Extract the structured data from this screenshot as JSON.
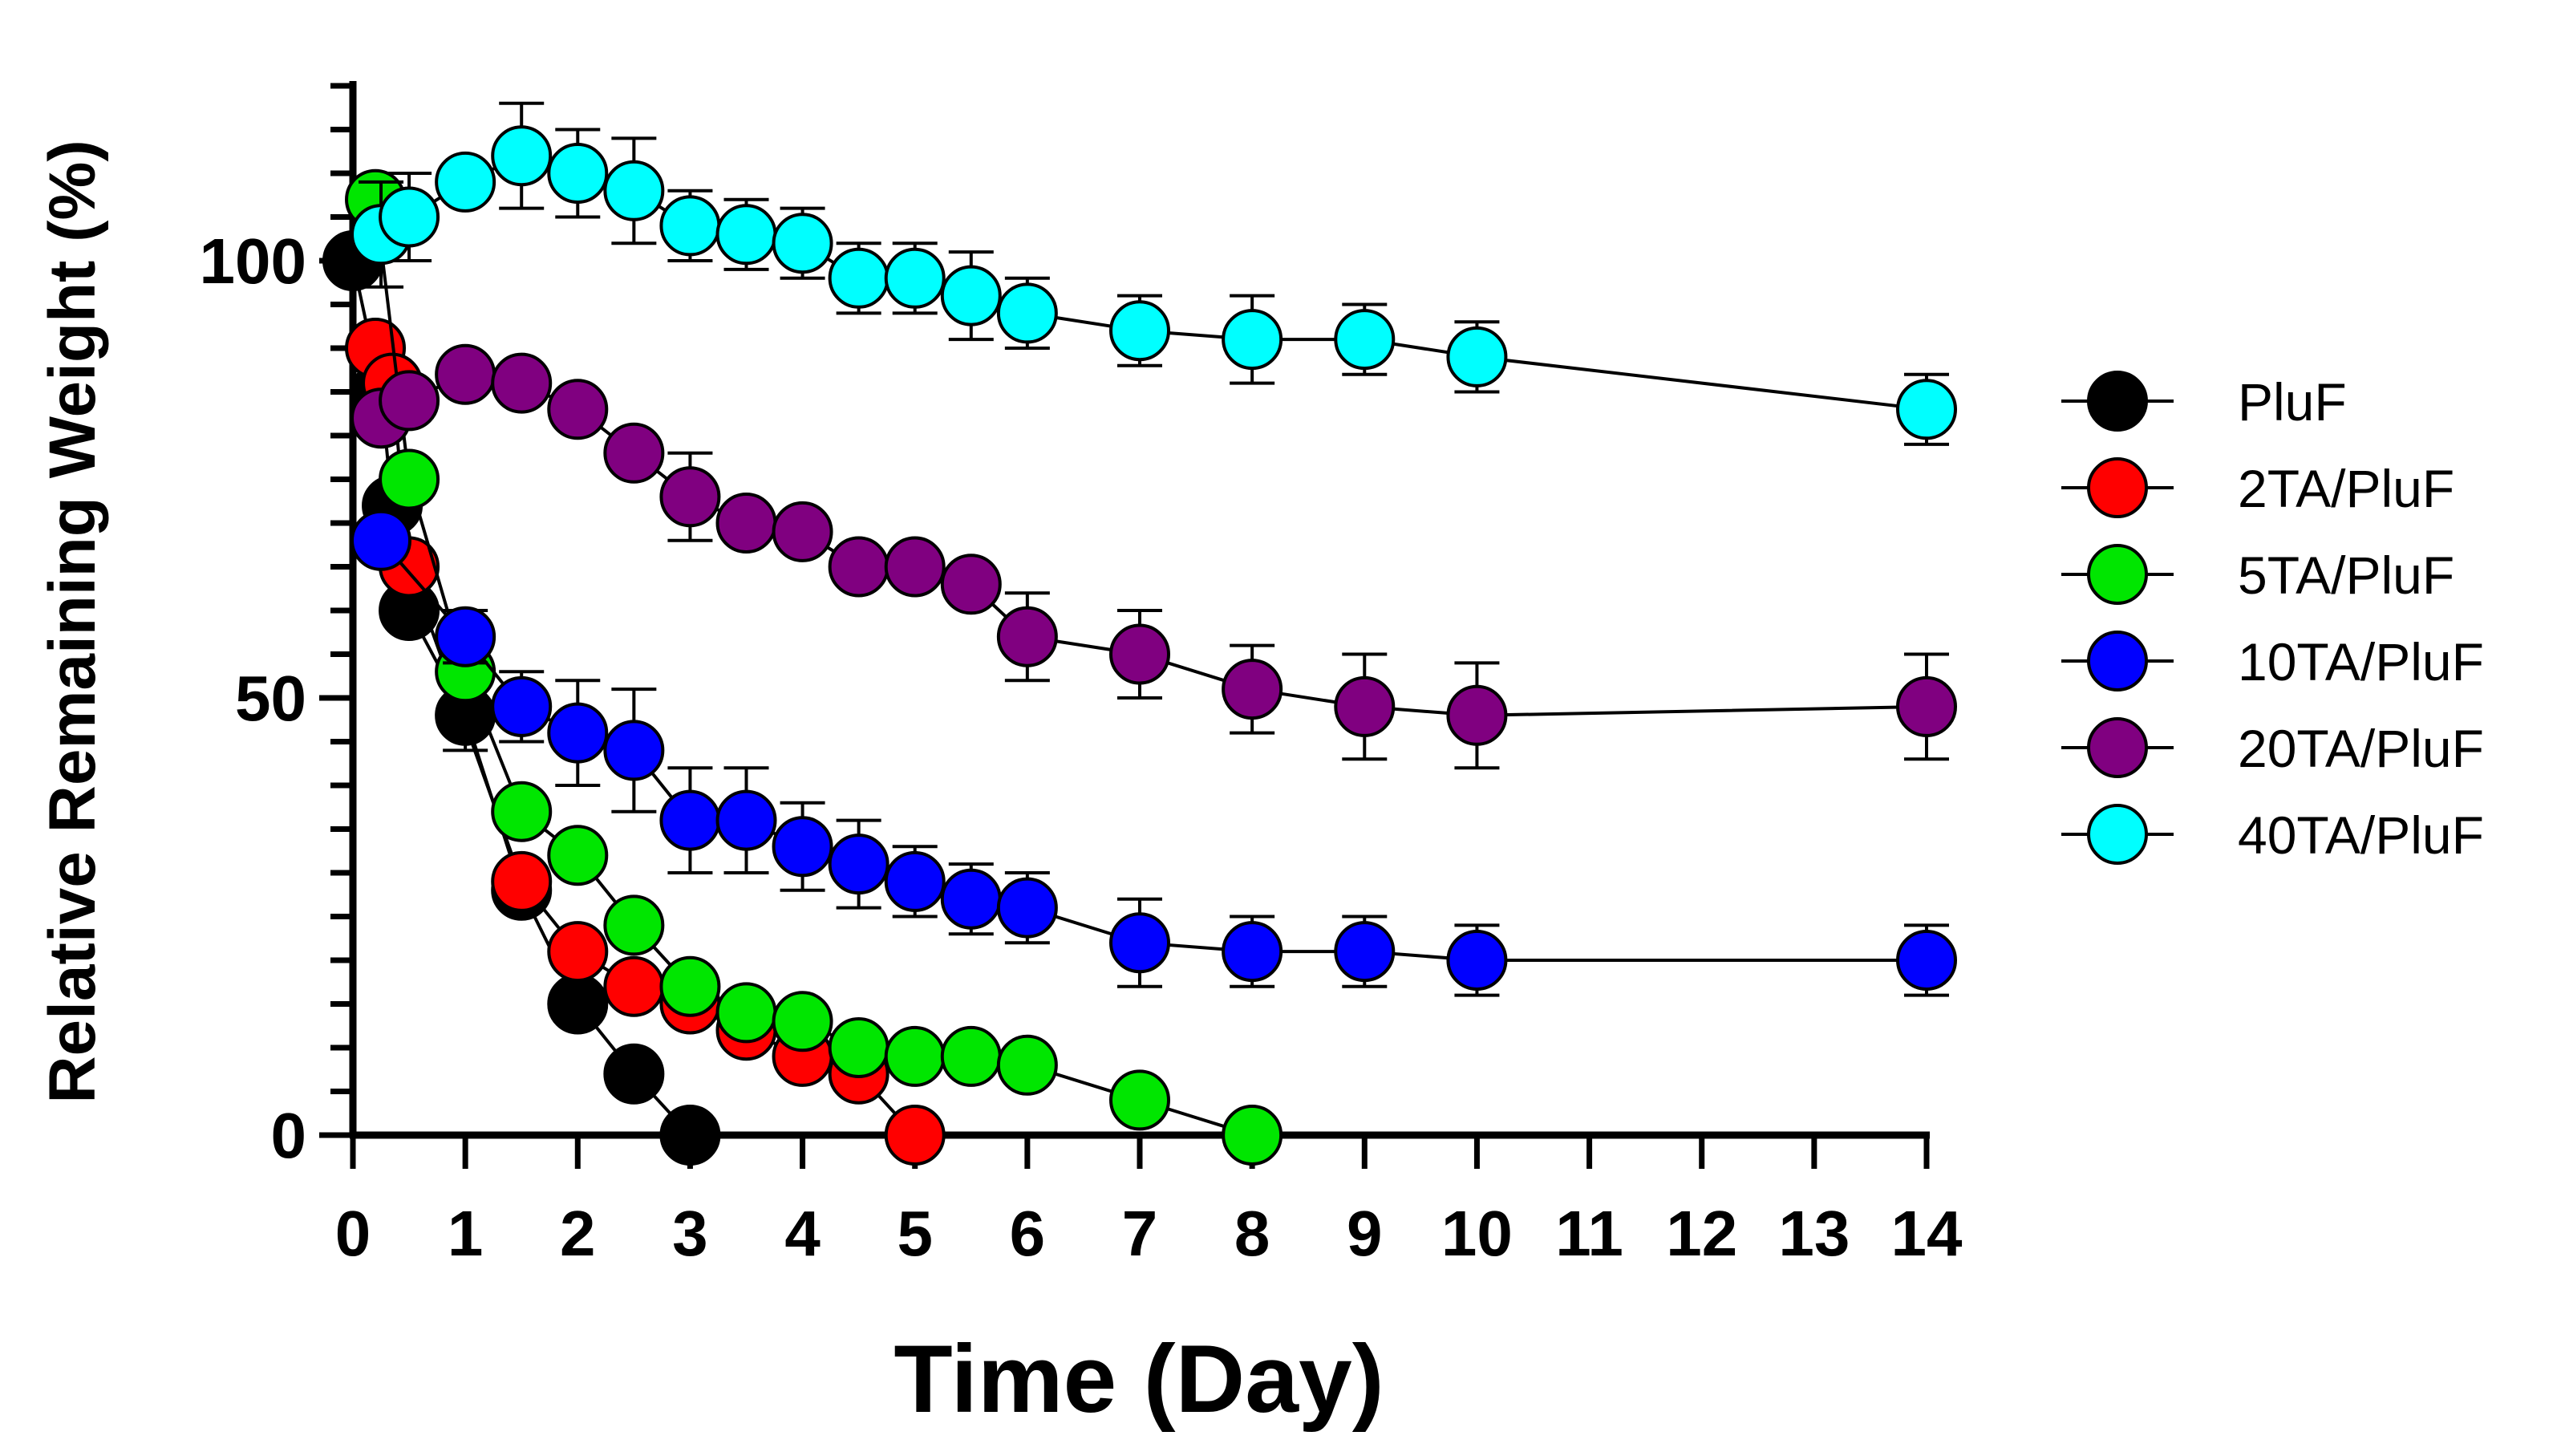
{
  "chart_data": {
    "type": "scatter",
    "title": "",
    "xlabel": "Time (Day)",
    "ylabel": "Relative Remaining Weight (%)",
    "xlim": [
      0,
      14
    ],
    "ylim": [
      0,
      120
    ],
    "x_ticks": [
      0,
      1,
      2,
      3,
      4,
      5,
      6,
      7,
      8,
      9,
      10,
      11,
      12,
      13,
      14
    ],
    "y_major_ticks": [
      0,
      50,
      100
    ],
    "y_minor_step": 5,
    "legend_position": "right",
    "series": [
      {
        "name": "PluF",
        "color": "#000000",
        "x": [
          0,
          0.25,
          0.35,
          0.5,
          1,
          1.5,
          2,
          2.5,
          3
        ],
        "y": [
          100,
          85,
          72,
          60,
          48,
          28,
          15,
          7,
          0
        ],
        "err": [
          0,
          0,
          0,
          0,
          4,
          0,
          0,
          0,
          0
        ]
      },
      {
        "name": "2TA/PluF",
        "color": "#ff0000",
        "x": [
          0.2,
          0.35,
          0.5,
          1.5,
          2,
          2.5,
          3,
          3.5,
          4,
          4.5,
          5
        ],
        "y": [
          90,
          86,
          65,
          29,
          21,
          17,
          15,
          12,
          9,
          7,
          0
        ],
        "err": [
          0,
          0,
          0,
          0,
          0,
          0,
          0,
          0,
          0,
          0,
          0
        ]
      },
      {
        "name": "5TA/PluF",
        "color": "#00e600",
        "x": [
          0.2,
          0.5,
          1,
          1.5,
          2,
          2.5,
          3,
          3.5,
          4,
          4.5,
          5,
          5.5,
          6,
          7,
          8
        ],
        "y": [
          107,
          75,
          53,
          37,
          32,
          24,
          17,
          14,
          13,
          10,
          9,
          9,
          8,
          4,
          0
        ],
        "err": [
          0,
          0,
          0,
          0,
          0,
          0,
          0,
          0,
          0,
          0,
          0,
          0,
          0,
          0,
          0
        ]
      },
      {
        "name": "10TA/PluF",
        "color": "#0000ff",
        "x": [
          0.25,
          1,
          1.5,
          2,
          2.5,
          3,
          3.5,
          4,
          4.5,
          5,
          5.5,
          6,
          7,
          8,
          9,
          10,
          14
        ],
        "y": [
          68,
          57,
          49,
          46,
          44,
          36,
          36,
          33,
          31,
          29,
          27,
          26,
          22,
          21,
          21,
          20,
          20
        ],
        "err": [
          0,
          3,
          4,
          6,
          7,
          6,
          6,
          5,
          5,
          4,
          4,
          4,
          5,
          4,
          4,
          4,
          4
        ]
      },
      {
        "name": "20TA/PluF",
        "color": "#800080",
        "x": [
          0.25,
          0.5,
          1,
          1.5,
          2,
          2.5,
          3,
          3.5,
          4,
          4.5,
          5,
          5.5,
          6,
          7,
          8,
          9,
          10,
          14
        ],
        "y": [
          82,
          84,
          87,
          86,
          83,
          78,
          73,
          70,
          69,
          65,
          65,
          63,
          57,
          55,
          51,
          49,
          48,
          49
        ],
        "err": [
          0,
          0,
          0,
          0,
          0,
          0,
          5,
          0,
          0,
          0,
          0,
          0,
          5,
          5,
          5,
          6,
          6,
          6
        ]
      },
      {
        "name": "40TA/PluF",
        "color": "#00ffff",
        "x": [
          0.25,
          0.5,
          1,
          1.5,
          2,
          2.5,
          3,
          3.5,
          4,
          4.5,
          5,
          5.5,
          6,
          7,
          8,
          9,
          10,
          14
        ],
        "y": [
          103,
          105,
          109,
          112,
          110,
          108,
          104,
          103,
          102,
          98,
          98,
          96,
          94,
          92,
          91,
          91,
          89,
          83
        ],
        "err": [
          6,
          5,
          0,
          6,
          5,
          6,
          4,
          4,
          4,
          4,
          4,
          5,
          4,
          4,
          5,
          4,
          4,
          4
        ]
      }
    ]
  }
}
